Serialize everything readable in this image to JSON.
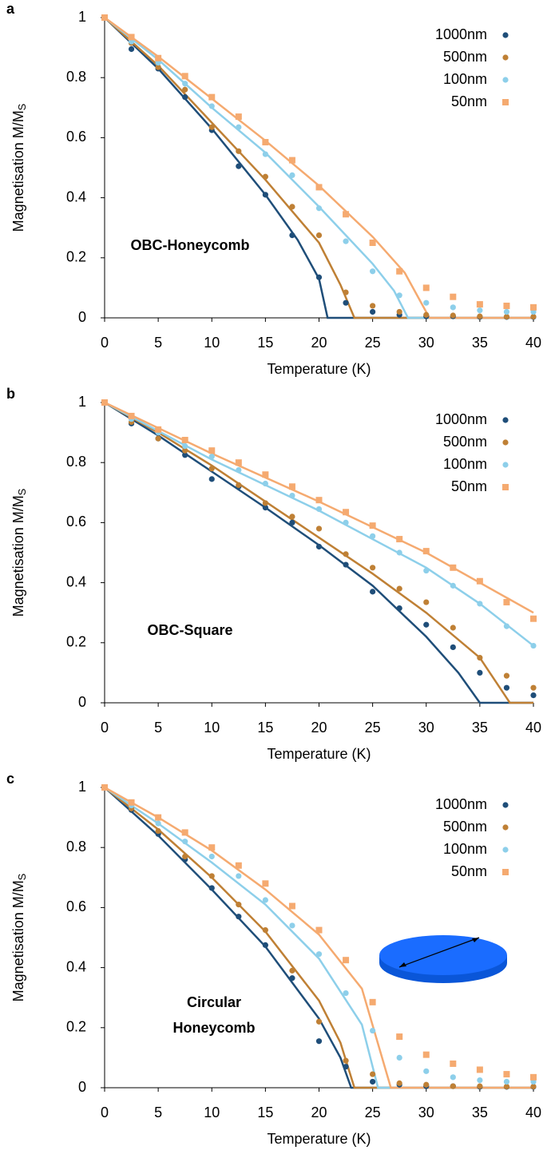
{
  "chart_data": [
    {
      "type": "scatter",
      "panel_label": "a",
      "annotation": [
        "OBC-Honeycomb"
      ],
      "xlabel": "Temperature (K)",
      "ylabel": "Magnetisation M/M",
      "ylabel_subscript": "S",
      "xlim": [
        0,
        40
      ],
      "ylim": [
        0,
        1
      ],
      "xticks": [
        0,
        5,
        10,
        15,
        20,
        25,
        30,
        35,
        40
      ],
      "yticks": [
        0,
        0.2,
        0.4,
        0.6,
        0.8,
        1
      ],
      "legend": "upper right",
      "x": [
        0,
        2.5,
        5,
        7.5,
        10,
        12.5,
        15,
        17.5,
        20,
        22.5,
        25,
        27.5,
        30,
        32.5,
        35,
        37.5,
        40
      ],
      "series": [
        {
          "name": "1000nm",
          "color": "#1f4e79",
          "marker": "circle",
          "values": [
            1,
            0.895,
            0.83,
            0.735,
            0.625,
            0.505,
            0.41,
            0.275,
            0.135,
            0.05,
            0.02,
            0.01,
            0.005,
            0.005,
            0.003,
            0.003,
            0.003
          ],
          "fit_x": [
            0,
            5,
            10,
            15,
            18,
            20,
            20.8,
            40
          ],
          "fit_values": [
            1,
            0.83,
            0.63,
            0.41,
            0.26,
            0.13,
            0,
            0
          ]
        },
        {
          "name": "500nm",
          "color": "#bf8035",
          "marker": "circle",
          "values": [
            1,
            0.915,
            0.835,
            0.76,
            0.635,
            0.555,
            0.47,
            0.37,
            0.275,
            0.085,
            0.04,
            0.02,
            0.01,
            0.008,
            0.005,
            0.004,
            0.004
          ],
          "fit_x": [
            0,
            5,
            10,
            15,
            20,
            22,
            23.3,
            40
          ],
          "fit_values": [
            1,
            0.84,
            0.65,
            0.46,
            0.25,
            0.11,
            0,
            0
          ]
        },
        {
          "name": "100nm",
          "color": "#8dcfea",
          "marker": "circle",
          "values": [
            1,
            0.92,
            0.85,
            0.78,
            0.705,
            0.635,
            0.545,
            0.475,
            0.365,
            0.255,
            0.155,
            0.075,
            0.05,
            0.035,
            0.025,
            0.02,
            0.02
          ],
          "fit_x": [
            0,
            5,
            10,
            15,
            20,
            25,
            27,
            28.3,
            40
          ],
          "fit_values": [
            1,
            0.86,
            0.7,
            0.55,
            0.37,
            0.18,
            0.09,
            0,
            0
          ]
        },
        {
          "name": "50nm",
          "color": "#f5aa70",
          "marker": "square",
          "values": [
            1,
            0.935,
            0.865,
            0.805,
            0.735,
            0.67,
            0.585,
            0.525,
            0.435,
            0.345,
            0.25,
            0.155,
            0.1,
            0.07,
            0.045,
            0.04,
            0.035
          ],
          "fit_x": [
            0,
            5,
            10,
            15,
            20,
            25,
            28,
            30.3,
            40
          ],
          "fit_values": [
            1,
            0.87,
            0.73,
            0.59,
            0.44,
            0.27,
            0.15,
            0,
            0
          ]
        }
      ]
    },
    {
      "type": "scatter",
      "panel_label": "b",
      "annotation": [
        "OBC-Square"
      ],
      "xlabel": "Temperature (K)",
      "ylabel": "Magnetisation M/M",
      "ylabel_subscript": "S",
      "xlim": [
        0,
        40
      ],
      "ylim": [
        0,
        1
      ],
      "xticks": [
        0,
        5,
        10,
        15,
        20,
        25,
        30,
        35,
        40
      ],
      "yticks": [
        0,
        0.2,
        0.4,
        0.6,
        0.8,
        1
      ],
      "legend": "upper right",
      "x": [
        0,
        2.5,
        5,
        7.5,
        10,
        12.5,
        15,
        17.5,
        20,
        22.5,
        25,
        27.5,
        30,
        32.5,
        35,
        37.5,
        40
      ],
      "series": [
        {
          "name": "1000nm",
          "color": "#1f4e79",
          "marker": "circle",
          "values": [
            1,
            0.93,
            0.88,
            0.825,
            0.745,
            0.72,
            0.65,
            0.6,
            0.52,
            0.46,
            0.37,
            0.315,
            0.26,
            0.185,
            0.1,
            0.05,
            0.025
          ],
          "fit_x": [
            0,
            5,
            10,
            15,
            20,
            25,
            30,
            33,
            35,
            40
          ],
          "fit_values": [
            1,
            0.89,
            0.77,
            0.65,
            0.525,
            0.39,
            0.22,
            0.1,
            0,
            0
          ]
        },
        {
          "name": "500nm",
          "color": "#bf8035",
          "marker": "circle",
          "values": [
            1,
            0.935,
            0.88,
            0.84,
            0.78,
            0.725,
            0.665,
            0.62,
            0.58,
            0.495,
            0.45,
            0.38,
            0.335,
            0.25,
            0.15,
            0.09,
            0.05
          ],
          "fit_x": [
            0,
            5,
            10,
            15,
            20,
            25,
            30,
            35,
            37.8,
            40
          ],
          "fit_values": [
            1,
            0.9,
            0.79,
            0.67,
            0.55,
            0.43,
            0.3,
            0.15,
            0,
            0
          ]
        },
        {
          "name": "100nm",
          "color": "#8dcfea",
          "marker": "circle",
          "values": [
            1,
            0.945,
            0.9,
            0.855,
            0.82,
            0.775,
            0.73,
            0.69,
            0.645,
            0.6,
            0.555,
            0.5,
            0.44,
            0.39,
            0.33,
            0.255,
            0.19
          ],
          "fit_x": [
            0,
            10,
            20,
            30,
            35,
            40
          ],
          "fit_values": [
            1,
            0.81,
            0.64,
            0.45,
            0.33,
            0.19
          ]
        },
        {
          "name": "50nm",
          "color": "#f5aa70",
          "marker": "square",
          "values": [
            1,
            0.955,
            0.91,
            0.875,
            0.84,
            0.8,
            0.76,
            0.72,
            0.675,
            0.635,
            0.59,
            0.545,
            0.505,
            0.45,
            0.405,
            0.335,
            0.28
          ],
          "fit_x": [
            0,
            10,
            20,
            30,
            40
          ],
          "fit_values": [
            1,
            0.83,
            0.67,
            0.5,
            0.3
          ]
        }
      ]
    },
    {
      "type": "scatter",
      "panel_label": "c",
      "annotation": [
        "Circular",
        "Honeycomb"
      ],
      "xlabel": "Temperature (K)",
      "ylabel": "Magnetisation M/M",
      "ylabel_subscript": "S",
      "xlim": [
        0,
        40
      ],
      "ylim": [
        0,
        1
      ],
      "xticks": [
        0,
        5,
        10,
        15,
        20,
        25,
        30,
        35,
        40
      ],
      "yticks": [
        0,
        0.2,
        0.4,
        0.6,
        0.8,
        1
      ],
      "legend": "upper right",
      "x": [
        0,
        2.5,
        5,
        7.5,
        10,
        12.5,
        15,
        17.5,
        20,
        22.5,
        25,
        27.5,
        30,
        32.5,
        35,
        37.5,
        40
      ],
      "series": [
        {
          "name": "1000nm",
          "color": "#1f4e79",
          "marker": "circle",
          "values": [
            1,
            0.925,
            0.845,
            0.76,
            0.665,
            0.57,
            0.475,
            0.365,
            0.155,
            0.07,
            0.02,
            0.01,
            0.005,
            0.005,
            0.003,
            0.003,
            0.003
          ],
          "fit_x": [
            0,
            5,
            10,
            15,
            20,
            22,
            23,
            40
          ],
          "fit_values": [
            1,
            0.84,
            0.66,
            0.47,
            0.23,
            0.1,
            0,
            0
          ]
        },
        {
          "name": "500nm",
          "color": "#bf8035",
          "marker": "circle",
          "values": [
            1,
            0.93,
            0.855,
            0.77,
            0.705,
            0.61,
            0.525,
            0.39,
            0.22,
            0.09,
            0.045,
            0.015,
            0.01,
            0.005,
            0.005,
            0.004,
            0.004
          ],
          "fit_x": [
            0,
            5,
            10,
            15,
            20,
            22,
            23.3,
            40
          ],
          "fit_values": [
            1,
            0.86,
            0.7,
            0.52,
            0.29,
            0.15,
            0,
            0
          ]
        },
        {
          "name": "100nm",
          "color": "#8dcfea",
          "marker": "circle",
          "values": [
            1,
            0.94,
            0.88,
            0.82,
            0.77,
            0.705,
            0.625,
            0.54,
            0.445,
            0.315,
            0.19,
            0.1,
            0.055,
            0.035,
            0.025,
            0.02,
            0.02
          ],
          "fit_x": [
            0,
            5,
            10,
            15,
            20,
            24,
            25.5,
            40
          ],
          "fit_values": [
            1,
            0.88,
            0.75,
            0.61,
            0.43,
            0.21,
            0,
            0
          ]
        },
        {
          "name": "50nm",
          "color": "#f5aa70",
          "marker": "square",
          "values": [
            1,
            0.95,
            0.9,
            0.85,
            0.8,
            0.74,
            0.68,
            0.605,
            0.525,
            0.425,
            0.285,
            0.17,
            0.11,
            0.08,
            0.06,
            0.045,
            0.035
          ],
          "fit_x": [
            0,
            5,
            10,
            15,
            20,
            24,
            26.7,
            40
          ],
          "fit_values": [
            1,
            0.9,
            0.79,
            0.66,
            0.51,
            0.33,
            0,
            0
          ]
        }
      ]
    }
  ]
}
